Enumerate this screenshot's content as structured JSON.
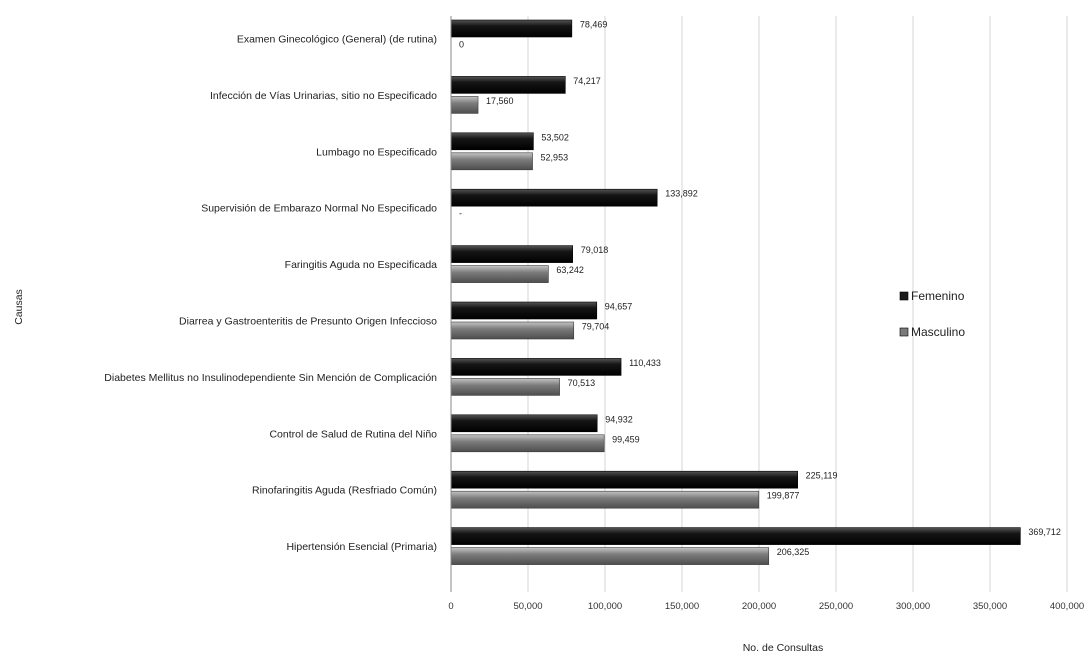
{
  "chart_data": {
    "type": "bar",
    "orientation": "horizontal",
    "categories": [
      "Examen Ginecológico (General) (de rutina)",
      "Infección de Vías Urinarias, sitio no Especificado",
      "Lumbago no Especificado",
      "Supervisión de  Embarazo Normal No Especificado",
      "Faringitis Aguda no Especificada",
      "Diarrea y Gastroenteritis de Presunto Origen Infeccioso",
      "Diabetes Mellitus no Insulinodependiente Sin Mención de Complicación",
      "Control de Salud de Rutina del Niño",
      "Rinofaringitis Aguda (Resfriado Común)",
      "Hipertensión Esencial (Primaria)"
    ],
    "series": [
      {
        "name": "Femenino",
        "color": "#1a1a1a",
        "values": [
          78469,
          74217,
          53502,
          133892,
          79018,
          94657,
          110433,
          94932,
          225119,
          369712
        ],
        "labels": [
          "78,469",
          "74,217",
          "53,502",
          "133,892",
          "79,018",
          "94,657",
          "110,433",
          "94,932",
          "225,119",
          "369,712"
        ]
      },
      {
        "name": "Masculino",
        "color": "#7a7a7a",
        "values": [
          0,
          17560,
          52953,
          0,
          63242,
          79704,
          70513,
          99459,
          199877,
          206325
        ],
        "labels": [
          "0",
          "17,560",
          "52,953",
          "-",
          "63,242",
          "79,704",
          "70,513",
          "99,459",
          "199,877",
          "206,325"
        ]
      }
    ],
    "xlim": [
      0,
      400000
    ],
    "xticks": [
      0,
      50000,
      100000,
      150000,
      200000,
      250000,
      300000,
      350000,
      400000
    ],
    "xtick_labels": [
      "0",
      "50,000",
      "100,000",
      "150,000",
      "200,000",
      "250,000",
      "300,000",
      "350,000",
      "400,000"
    ],
    "xlabel": "No. de Consultas",
    "ylabel": "Causas",
    "title": "",
    "grid": "vertical",
    "legend_position": "right"
  }
}
